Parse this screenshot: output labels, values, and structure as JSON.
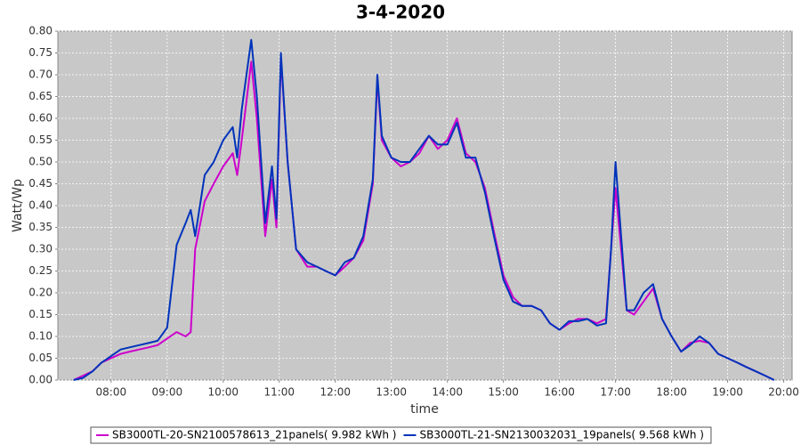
{
  "chart_data": {
    "type": "line",
    "title": "3-4-2020",
    "x_label": "time",
    "y_label": "Watt/Wp",
    "x": [
      7.33,
      7.5,
      7.67,
      7.83,
      8.0,
      8.17,
      8.33,
      8.5,
      8.67,
      8.83,
      9.0,
      9.17,
      9.33,
      9.42,
      9.5,
      9.67,
      9.83,
      10.0,
      10.17,
      10.25,
      10.33,
      10.5,
      10.6,
      10.75,
      10.87,
      10.95,
      11.03,
      11.15,
      11.3,
      11.5,
      11.67,
      11.83,
      12.0,
      12.17,
      12.33,
      12.5,
      12.67,
      12.75,
      12.83,
      13.0,
      13.17,
      13.33,
      13.5,
      13.67,
      13.83,
      14.0,
      14.17,
      14.33,
      14.5,
      14.67,
      14.83,
      15.0,
      15.17,
      15.33,
      15.5,
      15.67,
      15.83,
      16.0,
      16.17,
      16.33,
      16.5,
      16.67,
      16.83,
      16.92,
      17.0,
      17.1,
      17.2,
      17.33,
      17.5,
      17.67,
      17.83,
      18.0,
      18.17,
      18.33,
      18.5,
      18.67,
      18.83,
      19.0,
      19.17,
      19.33,
      19.5,
      19.67,
      19.83
    ],
    "series": [
      {
        "name": "SB3000TL-20-SN2100578613_21panels( 9.982 kWh )",
        "color": "#cc00cc",
        "values": [
          0.0,
          0.01,
          0.02,
          0.04,
          0.05,
          0.06,
          0.065,
          0.07,
          0.075,
          0.08,
          0.095,
          0.11,
          0.1,
          0.11,
          0.3,
          0.41,
          0.45,
          0.49,
          0.52,
          0.47,
          0.55,
          0.73,
          0.6,
          0.33,
          0.46,
          0.35,
          0.74,
          0.5,
          0.3,
          0.26,
          0.26,
          0.25,
          0.24,
          0.26,
          0.28,
          0.32,
          0.45,
          0.69,
          0.55,
          0.51,
          0.49,
          0.5,
          0.52,
          0.56,
          0.53,
          0.55,
          0.6,
          0.52,
          0.5,
          0.44,
          0.34,
          0.24,
          0.19,
          0.17,
          0.17,
          0.16,
          0.13,
          0.115,
          0.13,
          0.14,
          0.14,
          0.13,
          0.14,
          0.3,
          0.44,
          0.3,
          0.16,
          0.15,
          0.18,
          0.21,
          0.14,
          0.1,
          0.065,
          0.085,
          0.09,
          0.085,
          0.06,
          0.05,
          0.04,
          0.03,
          0.02,
          0.01,
          0.0
        ]
      },
      {
        "name": "SB3000TL-21-SN2130032031_19panels( 9.568 kWh )",
        "color": "#0033bb",
        "values": [
          0.0,
          0.005,
          0.02,
          0.04,
          0.055,
          0.07,
          0.075,
          0.08,
          0.085,
          0.09,
          0.12,
          0.31,
          0.36,
          0.39,
          0.33,
          0.47,
          0.5,
          0.55,
          0.58,
          0.51,
          0.62,
          0.78,
          0.65,
          0.36,
          0.49,
          0.37,
          0.75,
          0.5,
          0.3,
          0.27,
          0.26,
          0.25,
          0.24,
          0.27,
          0.28,
          0.33,
          0.46,
          0.7,
          0.56,
          0.51,
          0.5,
          0.5,
          0.53,
          0.56,
          0.54,
          0.54,
          0.59,
          0.51,
          0.51,
          0.43,
          0.33,
          0.23,
          0.18,
          0.17,
          0.17,
          0.16,
          0.13,
          0.115,
          0.135,
          0.135,
          0.14,
          0.125,
          0.13,
          0.3,
          0.5,
          0.33,
          0.16,
          0.16,
          0.2,
          0.22,
          0.14,
          0.1,
          0.065,
          0.08,
          0.1,
          0.085,
          0.06,
          0.05,
          0.04,
          0.03,
          0.02,
          0.01,
          0.0
        ]
      }
    ],
    "xlim": [
      7.05,
      20.15
    ],
    "xticks": [
      {
        "value": 8,
        "label": "08:00"
      },
      {
        "value": 9,
        "label": "09:00"
      },
      {
        "value": 10,
        "label": "10:00"
      },
      {
        "value": 11,
        "label": "11:00"
      },
      {
        "value": 12,
        "label": "12:00"
      },
      {
        "value": 13,
        "label": "13:00"
      },
      {
        "value": 14,
        "label": "14:00"
      },
      {
        "value": 15,
        "label": "15:00"
      },
      {
        "value": 16,
        "label": "16:00"
      },
      {
        "value": 17,
        "label": "17:00"
      },
      {
        "value": 18,
        "label": "18:00"
      },
      {
        "value": 19,
        "label": "19:00"
      },
      {
        "value": 20,
        "label": "20:00"
      }
    ],
    "ylim": [
      0,
      0.8
    ],
    "yticks": [
      {
        "value": 0,
        "label": "0.00"
      },
      {
        "value": 0.05,
        "label": "0.05"
      },
      {
        "value": 0.1,
        "label": "0.10"
      },
      {
        "value": 0.15,
        "label": "0.15"
      },
      {
        "value": 0.2,
        "label": "0.20"
      },
      {
        "value": 0.25,
        "label": "0.25"
      },
      {
        "value": 0.3,
        "label": "0.30"
      },
      {
        "value": 0.35,
        "label": "0.35"
      },
      {
        "value": 0.4,
        "label": "0.40"
      },
      {
        "value": 0.45,
        "label": "0.45"
      },
      {
        "value": 0.5,
        "label": "0.50"
      },
      {
        "value": 0.55,
        "label": "0.55"
      },
      {
        "value": 0.6,
        "label": "0.60"
      },
      {
        "value": 0.65,
        "label": "0.65"
      },
      {
        "value": 0.7,
        "label": "0.70"
      },
      {
        "value": 0.75,
        "label": "0.75"
      },
      {
        "value": 0.8,
        "label": "0.80"
      }
    ],
    "grid": true,
    "legend": "bottom"
  }
}
